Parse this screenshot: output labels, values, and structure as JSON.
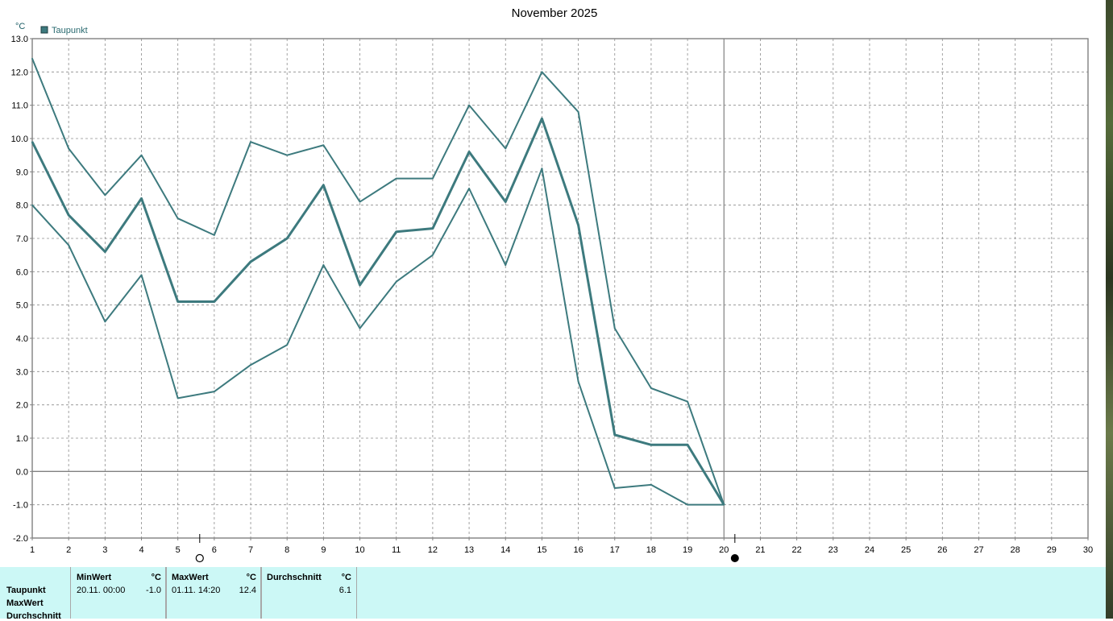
{
  "colors": {
    "series": "#3d7a7e",
    "grid": "#8c8c8c",
    "axis": "#808080",
    "panel": "#ccf8f6"
  },
  "chart_data": {
    "type": "line",
    "title": "November 2025",
    "ylabel": "°C",
    "ylim": [
      -2.0,
      13.0
    ],
    "xlim": [
      1,
      30
    ],
    "legend": {
      "label": "Taupunkt",
      "placement": "top-left"
    },
    "grid": true,
    "x": [
      1,
      2,
      3,
      4,
      5,
      6,
      7,
      8,
      9,
      10,
      11,
      12,
      13,
      14,
      15,
      16,
      17,
      18,
      19,
      20
    ],
    "x_ticks": [
      1,
      2,
      3,
      4,
      5,
      6,
      7,
      8,
      9,
      10,
      11,
      12,
      13,
      14,
      15,
      16,
      17,
      18,
      19,
      20,
      21,
      22,
      23,
      24,
      25,
      26,
      27,
      28,
      29,
      30
    ],
    "y_ticks": [
      "-2.0",
      "-1.0",
      "0.0",
      "1.0",
      "2.0",
      "3.0",
      "4.0",
      "5.0",
      "6.0",
      "7.0",
      "8.0",
      "9.0",
      "10.0",
      "11.0",
      "12.0",
      "13.0"
    ],
    "series": [
      {
        "role": "max",
        "values": [
          12.4,
          9.7,
          8.3,
          9.5,
          7.6,
          7.1,
          9.9,
          9.5,
          9.8,
          8.1,
          8.8,
          8.8,
          11.0,
          9.7,
          12.0,
          10.8,
          4.3,
          2.5,
          2.1,
          -1.0
        ]
      },
      {
        "role": "mean",
        "values": [
          9.9,
          7.7,
          6.6,
          8.2,
          5.1,
          5.1,
          6.3,
          7.0,
          8.6,
          5.6,
          7.2,
          7.3,
          9.6,
          8.1,
          10.6,
          7.4,
          1.1,
          0.8,
          0.8,
          -1.0
        ]
      },
      {
        "role": "min",
        "values": [
          8.0,
          6.8,
          4.5,
          5.9,
          2.2,
          2.4,
          3.2,
          3.8,
          6.2,
          4.3,
          5.7,
          6.5,
          8.5,
          6.2,
          9.1,
          2.7,
          -0.5,
          -0.4,
          -1.0,
          -1.0
        ]
      }
    ],
    "current_day_marker": 20,
    "moon_phases": [
      {
        "day": 5.6,
        "symbol": "full-moon"
      },
      {
        "day": 20.3,
        "symbol": "new-moon"
      }
    ]
  },
  "stats": {
    "row_labels": [
      "Taupunkt",
      "MaxWert",
      "Durchschnitt"
    ],
    "min": {
      "header": "MinWert",
      "unit": "°C",
      "date": "20.11.  00:00",
      "value": "-1.0"
    },
    "max": {
      "header": "MaxWert",
      "unit": "°C",
      "date": "01.11.  14:20",
      "value": "12.4"
    },
    "avg": {
      "header": "Durchschnitt",
      "unit": "°C",
      "value": "6.1"
    }
  }
}
